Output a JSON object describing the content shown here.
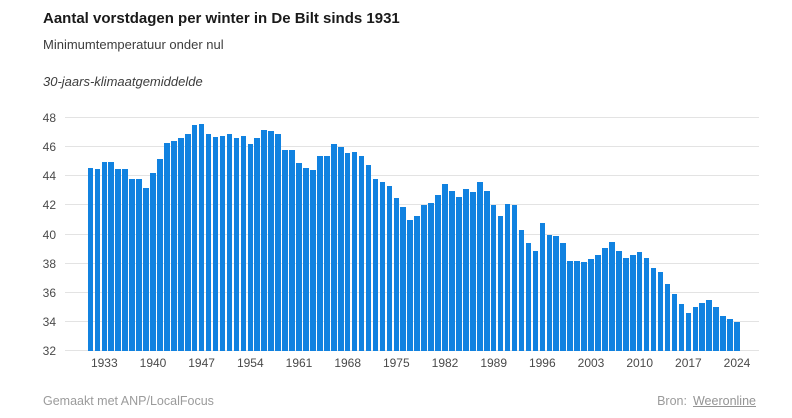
{
  "header": {
    "title": "Aantal vorstdagen per winter in De Bilt sinds 1931",
    "subtitle": "Minimumtemperatuur onder nul",
    "note": "30-jaars-klimaatgemiddelde"
  },
  "footer": {
    "credit": "Gemaakt met ANP/LocalFocus",
    "source_label": "Bron:",
    "source_link": "Weeronline"
  },
  "colors": {
    "bar": "#1182e0",
    "grid": "#e3e3e3",
    "axis_text": "#4a4a4a",
    "footer_text": "#9b9b9b"
  },
  "chart_data": {
    "type": "bar",
    "title": "Aantal vorstdagen per winter in De Bilt sinds 1931",
    "subtitle": "Minimumtemperatuur onder nul",
    "series_note": "30-jaars-klimaatgemiddelde",
    "start_year": 1931,
    "end_year": 2024,
    "ylim": [
      32,
      48
    ],
    "y_ticks": [
      32,
      34,
      36,
      38,
      40,
      42,
      44,
      46,
      48
    ],
    "x_tick_labels": [
      "1933",
      "1940",
      "1947",
      "1954",
      "1961",
      "1968",
      "1975",
      "1982",
      "1989",
      "1996",
      "2003",
      "2010",
      "2017",
      "2024"
    ],
    "x_tick_first_index": 2,
    "x_tick_step": 7,
    "grid": true,
    "legend": "none",
    "values": [
      44.6,
      44.5,
      45.0,
      45.0,
      44.5,
      44.5,
      43.8,
      43.8,
      43.2,
      44.2,
      45.2,
      46.3,
      46.4,
      46.6,
      46.9,
      47.5,
      47.6,
      46.9,
      46.7,
      46.8,
      46.9,
      46.6,
      46.8,
      46.2,
      46.6,
      47.2,
      47.1,
      46.9,
      45.8,
      45.8,
      44.9,
      44.6,
      44.4,
      45.4,
      45.4,
      46.2,
      46.0,
      45.6,
      45.7,
      45.4,
      44.8,
      43.8,
      43.6,
      43.3,
      42.5,
      41.9,
      41.0,
      41.3,
      42.0,
      42.2,
      42.7,
      43.5,
      43.0,
      42.6,
      43.1,
      42.9,
      43.6,
      43.0,
      42.0,
      41.3,
      42.1,
      42.0,
      40.3,
      39.4,
      38.9,
      40.8,
      40.0,
      39.9,
      39.4,
      38.2,
      38.2,
      38.1,
      38.3,
      38.6,
      39.1,
      39.5,
      38.9,
      38.4,
      38.6,
      38.8,
      38.4,
      37.7,
      37.4,
      36.6,
      35.9,
      35.2,
      34.6,
      35.0,
      35.3,
      35.5,
      35.0,
      34.4,
      34.2,
      34.0
    ]
  }
}
